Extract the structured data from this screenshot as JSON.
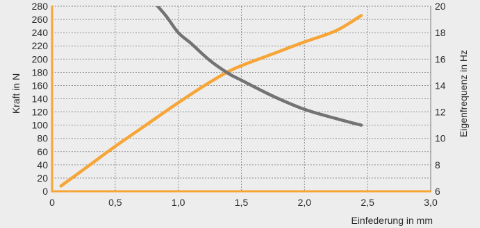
{
  "chart_data": {
    "type": "line",
    "xlabel": "Einfederung in mm",
    "ylabel_left": "Kraft in N",
    "ylabel_right": "Eigenfrequenz in Hz",
    "x_ticks": [
      "0",
      "0,5",
      "1,0",
      "1,5",
      "2,0",
      "2,5",
      "3,0"
    ],
    "left_ticks": [
      "0",
      "20",
      "40",
      "60",
      "80",
      "100",
      "120",
      "140",
      "160",
      "180",
      "200",
      "220",
      "240",
      "260",
      "280"
    ],
    "right_ticks": [
      "6",
      "8",
      "10",
      "12",
      "14",
      "16",
      "18",
      "20"
    ],
    "xlim": [
      0,
      3.0
    ],
    "ylim_left": [
      0,
      280
    ],
    "ylim_right": [
      6,
      20
    ],
    "grid": true,
    "series": [
      {
        "axis": "left",
        "color": "#f6a536",
        "x": [
          0.07,
          0.3,
          0.5,
          0.75,
          1.0,
          1.25,
          1.45,
          1.75,
          2.0,
          2.25,
          2.45
        ],
        "y": [
          8,
          40,
          68,
          101,
          134,
          165,
          186,
          208,
          226,
          243,
          266
        ]
      },
      {
        "axis": "right",
        "color": "#737373",
        "x": [
          0.79,
          0.9,
          1.0,
          1.1,
          1.25,
          1.4,
          1.5,
          1.75,
          2.0,
          2.25,
          2.45
        ],
        "y": [
          20.5,
          19.3,
          18.0,
          17.2,
          15.9,
          14.9,
          14.4,
          13.2,
          12.2,
          11.5,
          11.0
        ]
      }
    ]
  }
}
